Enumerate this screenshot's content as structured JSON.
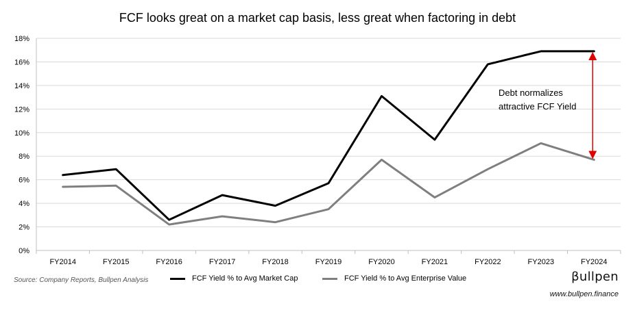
{
  "chart_data": {
    "type": "line",
    "title": "FCF looks great on a market cap basis, less great when factoring in debt",
    "categories": [
      "FY2014",
      "FY2015",
      "FY2016",
      "FY2017",
      "FY2018",
      "FY2019",
      "FY2020",
      "FY2021",
      "FY2022",
      "FY2023",
      "FY2024"
    ],
    "ylim": [
      0,
      18
    ],
    "yticks": [
      0,
      2,
      4,
      6,
      8,
      10,
      12,
      14,
      16,
      18
    ],
    "ytick_labels": [
      "0%",
      "2%",
      "4%",
      "6%",
      "8%",
      "10%",
      "12%",
      "14%",
      "16%",
      "18%"
    ],
    "grid": true,
    "legend_position": "bottom",
    "series": [
      {
        "name": "FCF Yield % to Avg Market Cap",
        "color": "#000000",
        "values": [
          6.4,
          6.9,
          2.6,
          4.7,
          3.8,
          5.7,
          13.1,
          9.4,
          15.8,
          16.9,
          16.9
        ]
      },
      {
        "name": "FCF Yield % to Avg Enterprise Value",
        "color": "#7f7f7f",
        "values": [
          5.4,
          5.5,
          2.2,
          2.9,
          2.4,
          3.5,
          7.7,
          4.5,
          6.9,
          9.1,
          7.7
        ]
      }
    ],
    "annotation": {
      "text_lines": [
        "Debt normalizes",
        "attractive FCF Yield"
      ],
      "category": "FY2024",
      "from_value": 16.9,
      "to_value": 7.7,
      "color": "#e00000"
    }
  },
  "footer": {
    "source": "Source: Company Reports, Bullpen Analysis",
    "brand": "βullpen",
    "url": "www.bullpen.finance"
  }
}
